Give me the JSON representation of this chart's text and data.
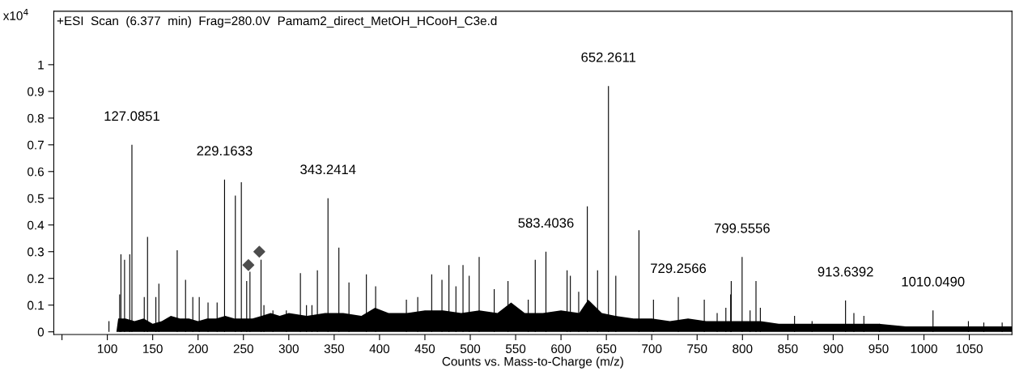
{
  "chart_data": {
    "type": "bar",
    "xlabel": "Counts vs. Mass-to-Charge (m/z)",
    "ylabel": "x10$^{4}$",
    "xlim": [
      41,
      1097
    ],
    "ylim": [
      -0.01,
      1.2
    ],
    "xticks": [
      {
        "value": 50,
        "label": null
      },
      100,
      150,
      200,
      250,
      300,
      350,
      400,
      450,
      500,
      550,
      600,
      650,
      700,
      750,
      800,
      850,
      900,
      950,
      1000,
      1050
    ],
    "yticks": [
      0,
      0.1,
      0.2,
      0.3,
      0.4,
      0.5,
      0.6,
      0.7,
      0.8,
      0.9,
      1
    ],
    "grid": false,
    "legend": false,
    "series": [
      {
        "type": "area",
        "color": "#000000",
        "x": [
          110,
          112,
          120,
          130,
          140,
          150,
          160,
          170,
          180,
          190,
          200,
          210,
          220,
          230,
          240,
          250,
          260,
          270,
          280,
          290,
          300,
          320,
          340,
          360,
          380,
          395,
          410,
          430,
          450,
          470,
          490,
          510,
          530,
          545,
          560,
          580,
          600,
          620,
          630,
          645,
          660,
          680,
          700,
          720,
          740,
          760,
          780,
          800,
          820,
          840,
          860,
          880,
          900,
          920,
          950,
          980,
          1000,
          1020,
          1050,
          1097
        ],
        "values": [
          0,
          0.05,
          0.05,
          0.04,
          0.05,
          0.03,
          0.04,
          0.06,
          0.05,
          0.05,
          0.04,
          0.05,
          0.05,
          0.06,
          0.05,
          0.05,
          0.05,
          0.06,
          0.07,
          0.06,
          0.07,
          0.06,
          0.07,
          0.07,
          0.06,
          0.09,
          0.07,
          0.07,
          0.08,
          0.08,
          0.07,
          0.08,
          0.07,
          0.11,
          0.07,
          0.07,
          0.08,
          0.07,
          0.12,
          0.07,
          0.06,
          0.05,
          0.05,
          0.04,
          0.05,
          0.04,
          0.04,
          0.04,
          0.04,
          0.03,
          0.03,
          0.03,
          0.03,
          0.03,
          0.03,
          0.02,
          0.02,
          0.02,
          0.02,
          0.02
        ]
      },
      {
        "color": "#000000",
        "x": [
          101.8,
          113.6,
          115,
          119,
          124.7,
          127.1,
          140.7,
          144.3,
          153.5,
          156.8,
          177,
          186.2,
          194.2,
          201.3,
          211,
          221,
          229.2,
          241.1,
          247.7,
          253.6,
          257.2,
          269.4,
          272.6,
          282.5,
          297.3,
          312.8,
          319.5,
          325.5,
          331.5,
          343.2,
          355.2,
          366.3,
          385.5,
          395.7,
          429.6,
          442.1,
          457.5,
          468.8,
          476.5,
          484.2,
          492,
          498.8,
          509.8,
          526.4,
          541.6,
          563.9,
          571.6,
          583.4,
          606.7,
          610.3,
          619.5,
          629,
          640.3,
          652.3,
          660.4,
          685.9,
          701.9,
          729.3,
          757.9,
          772.1,
          781.7,
          787,
          787.6,
          799.6,
          808.4,
          814.9,
          819.7,
          857.4,
          876.7,
          913.6,
          922.8,
          933.8,
          951,
          1010,
          1049,
          1066,
          1086.2
        ],
        "values": [
          0.04,
          0.14,
          0.29,
          0.27,
          0.29,
          0.7,
          0.13,
          0.355,
          0.13,
          0.18,
          0.305,
          0.195,
          0.13,
          0.13,
          0.11,
          0.11,
          0.57,
          0.51,
          0.56,
          0.19,
          0.225,
          0.27,
          0.1,
          0.08,
          0.08,
          0.22,
          0.1,
          0.1,
          0.23,
          0.5,
          0.315,
          0.185,
          0.215,
          0.17,
          0.12,
          0.13,
          0.215,
          0.195,
          0.25,
          0.17,
          0.25,
          0.21,
          0.28,
          0.16,
          0.19,
          0.12,
          0.27,
          0.3,
          0.23,
          0.21,
          0.15,
          0.47,
          0.23,
          0.92,
          0.21,
          0.38,
          0.12,
          0.13,
          0.12,
          0.07,
          0.09,
          0.14,
          0.19,
          0.28,
          0.08,
          0.19,
          0.09,
          0.06,
          0.04,
          0.117,
          0.07,
          0.06,
          0.03,
          0.08,
          0.04,
          0.035,
          0.035
        ]
      },
      {
        "type": "scatter",
        "color": "#4d4d4d",
        "marker": "diamond",
        "x": [
          255.5,
          267.5
        ],
        "values": [
          0.25,
          0.3
        ]
      }
    ],
    "annotations": [
      "+ESI  Scan  (6.377  min)  Frag=280.0V  Pamam2_direct_MetOH_HCooH_C3e.d",
      {
        "text": "127.0851",
        "x": 127.1,
        "y": 0.7
      },
      {
        "text": "229.1633",
        "x": 229.2,
        "y": 0.57
      },
      {
        "text": "343.2414",
        "x": 343.2,
        "y": 0.5
      },
      {
        "text": "583.4036",
        "x": 583.4,
        "y": 0.3
      },
      {
        "text": "652.2611",
        "x": 652.3,
        "y": 0.92
      },
      {
        "text": "729.2566",
        "x": 729.3,
        "y": 0.13
      },
      {
        "text": "799.5556",
        "x": 799.6,
        "y": 0.28
      },
      {
        "text": "913.6392",
        "x": 913.6,
        "y": 0.117
      },
      {
        "text": "1010.0490",
        "x": 1010,
        "y": 0.08
      }
    ]
  }
}
